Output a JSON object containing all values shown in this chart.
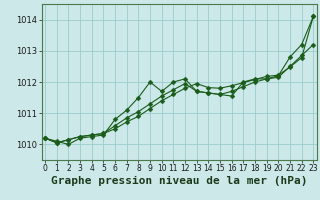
{
  "title": "Graphe pression niveau de la mer (hPa)",
  "bg_color": "#cce8e8",
  "grid_color": "#99cccc",
  "line_color": "#1a5c1a",
  "marker_color": "#1a5c1a",
  "xlim": [
    -0.3,
    23.3
  ],
  "ylim": [
    1009.5,
    1014.5
  ],
  "yticks": [
    1010,
    1011,
    1012,
    1013,
    1014
  ],
  "xticks": [
    0,
    1,
    2,
    3,
    4,
    5,
    6,
    7,
    8,
    9,
    10,
    11,
    12,
    13,
    14,
    15,
    16,
    17,
    18,
    19,
    20,
    21,
    22,
    23
  ],
  "line1": [
    1010.2,
    1010.1,
    1010.0,
    1010.2,
    1010.25,
    1010.3,
    1010.8,
    1011.1,
    1011.5,
    1012.0,
    1011.7,
    1012.0,
    1012.1,
    1011.7,
    1011.65,
    1011.6,
    1011.55,
    1012.0,
    1012.1,
    1012.1,
    1012.2,
    1012.8,
    1013.2,
    1014.1
  ],
  "line2": [
    1010.2,
    1010.05,
    1010.15,
    1010.25,
    1010.3,
    1010.35,
    1010.6,
    1010.85,
    1011.05,
    1011.3,
    1011.55,
    1011.75,
    1011.95,
    1011.7,
    1011.65,
    1011.6,
    1011.7,
    1011.85,
    1012.0,
    1012.1,
    1012.15,
    1012.5,
    1012.85,
    1013.2
  ],
  "line3": [
    1010.2,
    1010.05,
    1010.15,
    1010.25,
    1010.3,
    1010.35,
    1010.5,
    1010.72,
    1010.9,
    1011.15,
    1011.4,
    1011.6,
    1011.8,
    1011.95,
    1011.82,
    1011.8,
    1011.88,
    1011.98,
    1012.08,
    1012.18,
    1012.22,
    1012.48,
    1012.78,
    1014.1
  ],
  "title_fontsize": 8,
  "tick_fontsize": 6,
  "marker_size": 2.5,
  "line_width": 0.8
}
